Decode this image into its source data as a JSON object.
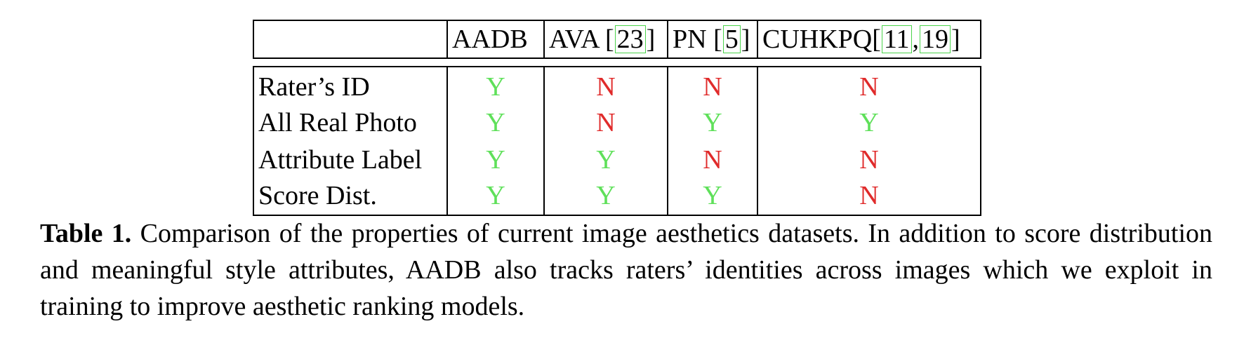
{
  "table": {
    "columns": [
      {
        "text": "AADB",
        "refs": []
      },
      {
        "text": "AVA ",
        "refs": [
          "23"
        ]
      },
      {
        "text": "PN ",
        "refs": [
          "5"
        ]
      },
      {
        "text": "CUHKPQ",
        "refs": [
          "11",
          "19"
        ]
      }
    ],
    "rows": [
      {
        "label": "Rater’s ID",
        "values": [
          "Y",
          "N",
          "N",
          "N"
        ]
      },
      {
        "label": "All Real Photo",
        "values": [
          "Y",
          "N",
          "Y",
          "Y"
        ]
      },
      {
        "label": "Attribute Label",
        "values": [
          "Y",
          "Y",
          "N",
          "N"
        ]
      },
      {
        "label": "Score Dist.",
        "values": [
          "Y",
          "Y",
          "Y",
          "N"
        ]
      }
    ],
    "colors": {
      "Y": "#5fe05a",
      "N": "#e02b2b",
      "ref_box": "#4cd44c"
    }
  },
  "caption": {
    "label": "Table 1.",
    "text": " Comparison of the properties of current image aesthetics datasets. In addition to score distribution and meaningful style attributes, AADB also tracks raters’ identities across images which we exploit in training to improve aesthetic ranking models."
  }
}
